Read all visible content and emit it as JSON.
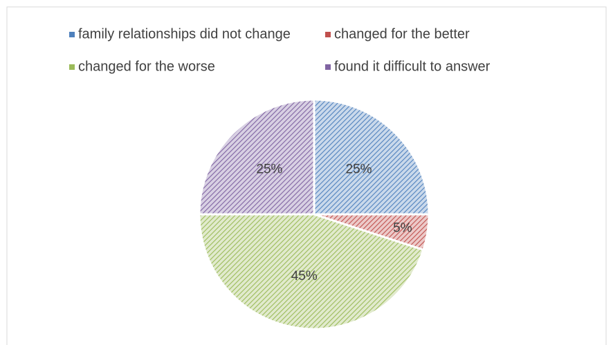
{
  "chart_data": {
    "type": "pie",
    "categories": [
      "family relationships did not change",
      "changed for the better",
      "changed for the worse",
      "found it difficult to answer"
    ],
    "values": [
      25,
      5,
      45,
      25
    ],
    "value_labels": [
      "25%",
      "5%",
      "45%",
      "25%"
    ],
    "colors": [
      "#4f81bd",
      "#c0504d",
      "#9bbb59",
      "#8064a2"
    ],
    "legend": "top"
  }
}
